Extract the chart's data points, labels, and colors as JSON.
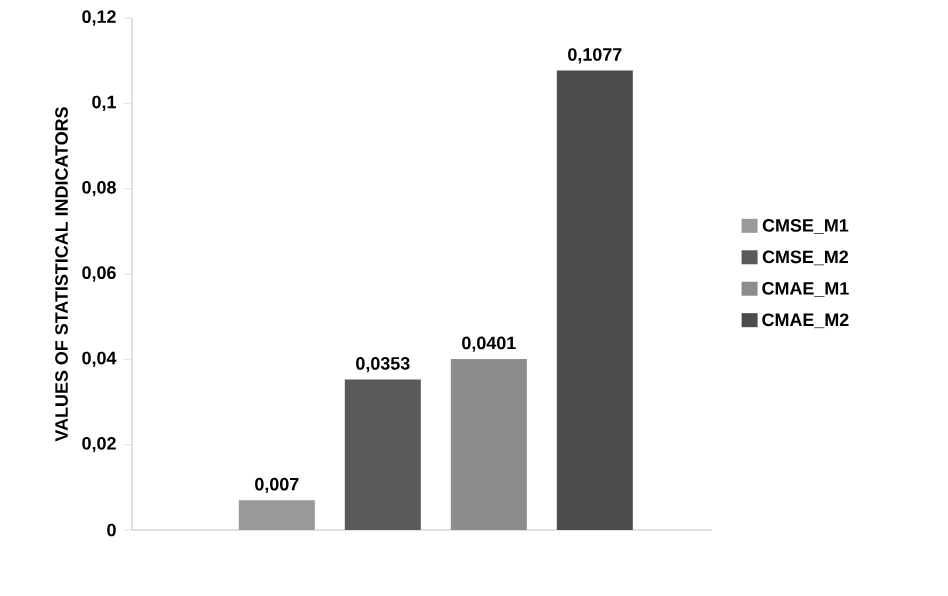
{
  "chart_data": {
    "type": "bar",
    "ylabel": "VALUES OF STATISTICAL INDICATORS",
    "categories": [
      null
    ],
    "series": [
      {
        "name": "CMSE_M1",
        "color": "#999999",
        "values": [
          0.007
        ],
        "value_labels": [
          "0,007"
        ]
      },
      {
        "name": "CMSE_M2",
        "color": "#5a5a5a",
        "values": [
          0.0353
        ],
        "value_labels": [
          "0,0353"
        ]
      },
      {
        "name": "CMAE_M1",
        "color": "#8c8c8c",
        "values": [
          0.0401
        ],
        "value_labels": [
          "0,0401"
        ]
      },
      {
        "name": "CMAE_M2",
        "color": "#4d4d4d",
        "values": [
          0.1077
        ],
        "value_labels": [
          "0,1077"
        ]
      }
    ],
    "ylim": [
      0,
      0.12
    ],
    "yticks": [
      {
        "value": 0,
        "label": "0"
      },
      {
        "value": 0.02,
        "label": "0,02"
      },
      {
        "value": 0.04,
        "label": "0,04"
      },
      {
        "value": 0.06,
        "label": "0,06"
      },
      {
        "value": 0.08,
        "label": "0,08"
      },
      {
        "value": 0.1,
        "label": "0,1"
      },
      {
        "value": 0.12,
        "label": "0,12"
      }
    ],
    "legend": "right",
    "grid": false
  }
}
